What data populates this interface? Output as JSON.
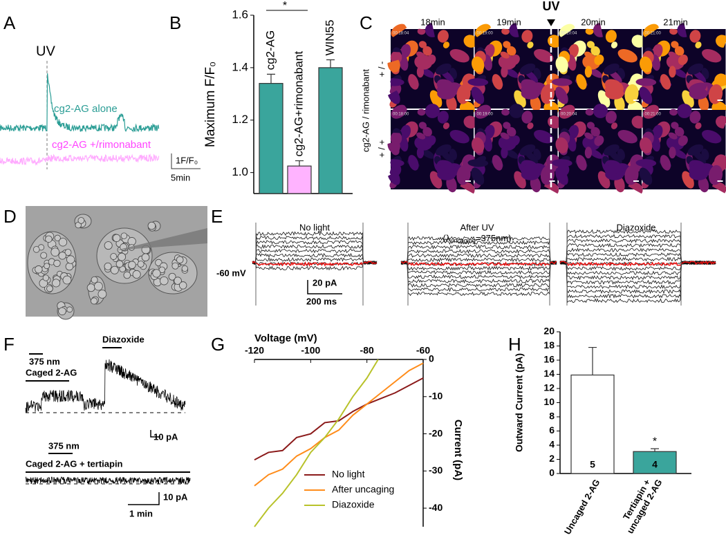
{
  "panel_letters": [
    "A",
    "B",
    "C",
    "D",
    "E",
    "F",
    "G",
    "H"
  ],
  "panel_a": {
    "stimulus": "UV",
    "trace_labels": [
      "cg2-AG alone",
      "cg2-AG +/rimonabant"
    ],
    "scale_y": "1F/F₀",
    "scale_x": "5min"
  },
  "panel_c": {
    "stimulus": "UV",
    "times": [
      "18min",
      "19min",
      "20min",
      "21min"
    ],
    "row_title": "cg2-AG / rimonabant",
    "rows": [
      "+ / -",
      "+ / +"
    ],
    "timestamps": [
      [
        "00:18:04",
        "00:19:00",
        "00:20:04",
        "00:21:00"
      ],
      [
        "00:18:00",
        "00:19:00",
        "00:20:04",
        "00:21:00"
      ]
    ]
  },
  "panel_e": {
    "conditions": [
      "No light",
      "After UV",
      "Diazoxide"
    ],
    "uv_note": [
      "(λ",
      "uncaging",
      "=375nm)"
    ],
    "holding": "-60 mV",
    "scale_y": "20 pA",
    "scale_x": "200 ms"
  },
  "panel_f": {
    "drug": "Diazoxide",
    "stimulus": [
      "375 nm",
      "375 nm"
    ],
    "conditions": [
      "Caged 2-AG",
      "Caged 2-AG + tertiapin"
    ],
    "scale_y": [
      "10 pA",
      "10 pA"
    ],
    "scale_x": "1 min"
  },
  "chart_data": [
    {
      "type": "bar",
      "ylabel": "Maximum F/F₀",
      "categories": [
        [
          "cg2-AG"
        ],
        [
          "cg2-AG+rimonabant"
        ],
        [
          "WIN55"
        ]
      ],
      "values": [
        1.34,
        1.025,
        1.4
      ],
      "errors": [
        0.035,
        0.02,
        0.03
      ],
      "colors": [
        "#3aa59c",
        "#ffb3ff",
        "#3aa59c"
      ],
      "ylim": [
        0.92,
        1.6
      ],
      "yticks": [
        {
          "value": 1,
          "label": "1.0"
        },
        1.2,
        1.4,
        1.6
      ],
      "annotation": "*"
    },
    {
      "type": "line",
      "xlabel": "Voltage (mV)",
      "ylabel": "Current (pA)",
      "xlim": [
        -120,
        -60
      ],
      "ylim": [
        -45,
        0
      ],
      "xticks": [
        -120,
        -100,
        -80,
        -60
      ],
      "yticks": [
        0,
        -10,
        -20,
        -30,
        -40
      ],
      "legend": "lower left",
      "series": [
        {
          "name": "No light",
          "color": "#8b1a1a",
          "x": [
            -120,
            -115,
            -110,
            -105,
            -100,
            -95,
            -90,
            -85,
            -80,
            -75,
            -70,
            -65,
            -60
          ],
          "values": [
            -27,
            -25,
            -24.5,
            -21,
            -20,
            -17,
            -16.5,
            -14,
            -12,
            -10.5,
            -9,
            -7,
            -5
          ]
        },
        {
          "name": "After uncaging",
          "color": "#ff8c1a",
          "x": [
            -120,
            -115,
            -110,
            -105,
            -100,
            -95,
            -90,
            -85,
            -80,
            -75,
            -70,
            -65,
            -60
          ],
          "values": [
            -34,
            -31,
            -29.5,
            -26,
            -24,
            -21,
            -19,
            -15,
            -12,
            -9,
            -6,
            -3,
            -1
          ]
        },
        {
          "name": "Diazoxide",
          "color": "#b8c22a",
          "x": [
            -120,
            -115,
            -110,
            -105,
            -100,
            -95,
            -90,
            -85,
            -80,
            -76
          ],
          "values": [
            -45,
            -40,
            -36,
            -31,
            -25,
            -21,
            -16,
            -10,
            -5,
            0
          ]
        }
      ]
    },
    {
      "type": "bar",
      "ylabel": "Outward Current (pA)",
      "categories": [
        [
          "Uncaged 2-AG"
        ],
        [
          "Tertiapin +",
          "uncaged 2-AG"
        ]
      ],
      "values": [
        13.9,
        3.1
      ],
      "errors": [
        3.9,
        0.4
      ],
      "colors": [
        "#ffffff",
        "#3aa59c"
      ],
      "n_labels": [
        5,
        4
      ],
      "ylim": [
        0,
        20
      ],
      "yticks": [
        0,
        2,
        4,
        6,
        8,
        10,
        12,
        14,
        16,
        18,
        20
      ],
      "annotation": "*"
    }
  ]
}
